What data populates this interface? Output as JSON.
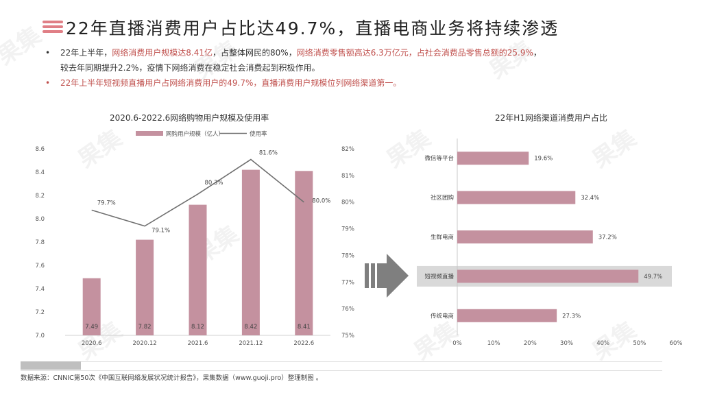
{
  "header": {
    "title": "22年直播消费用户占比达49.7%，直播电商业务将持续渗透"
  },
  "bullets": {
    "b1_a": "22年上半年，",
    "b1_b": "网络消费用户规模达8.41亿",
    "b1_c": "，占整体网民的80%，",
    "b1_d": "网络消费零售额高达6.3万亿元，占社会消费品零售总额的25.9%",
    "b1_e": "，",
    "b1_f": "较去年同期提升2.2%，疫情下网络消费在稳定社会消费起到积极作用。",
    "b2": "22年上半年短视频直播用户占网络消费用户的49.7%，直播消费用户规模位列网络渠道第一。"
  },
  "watermark": "果集",
  "source": "数据来源：CNNIC第50次《中国互联网络发展状况统计报告》，果集数据（www.guoji.pro）整理制图 。",
  "colors": {
    "bar": "#c4919f",
    "line": "#707070",
    "accent": "#c0504d",
    "highlight": "#d9d9d9"
  },
  "chart_data": [
    {
      "type": "bar",
      "title": "2020.6-2022.6网络购物用户规模及使用率",
      "categories": [
        "2020.6",
        "2020.12",
        "2021.6",
        "2021.12",
        "2022.6"
      ],
      "series": [
        {
          "name": "网购用户规模（亿人）",
          "type": "bar",
          "axis": "left",
          "values": [
            7.49,
            7.82,
            8.12,
            8.42,
            8.41
          ],
          "labels": [
            "7.49",
            "7.82",
            "8.12",
            "8.42",
            "8.41"
          ]
        },
        {
          "name": "使用率",
          "type": "line",
          "axis": "right",
          "values": [
            79.7,
            79.1,
            80.3,
            81.6,
            80.0
          ],
          "labels": [
            "79.7%",
            "79.1%",
            "80.3%",
            "81.6%",
            "80.0%"
          ]
        }
      ],
      "ylim_left": [
        7.0,
        8.6
      ],
      "yticks_left": [
        "7.0",
        "7.2",
        "7.4",
        "7.6",
        "7.8",
        "8.0",
        "8.2",
        "8.4",
        "8.6"
      ],
      "ylim_right": [
        75,
        82
      ],
      "yticks_right": [
        "75%",
        "76%",
        "77%",
        "78%",
        "79%",
        "80%",
        "81%",
        "82%"
      ],
      "legend": "top"
    },
    {
      "type": "bar",
      "orientation": "horizontal",
      "title": "22年H1网络渠道消费用户占比",
      "categories": [
        "微信等平台",
        "社区团购",
        "生鲜电商",
        "短视频直播",
        "传统电商"
      ],
      "values": [
        19.6,
        32.4,
        37.2,
        49.7,
        27.3
      ],
      "labels": [
        "19.6%",
        "32.4%",
        "37.2%",
        "49.7%",
        "27.3%"
      ],
      "highlight": "短视频直播",
      "xlim": [
        0,
        60
      ],
      "xticks": [
        "0%",
        "10%",
        "20%",
        "30%",
        "40%",
        "50%",
        "60%"
      ]
    }
  ]
}
